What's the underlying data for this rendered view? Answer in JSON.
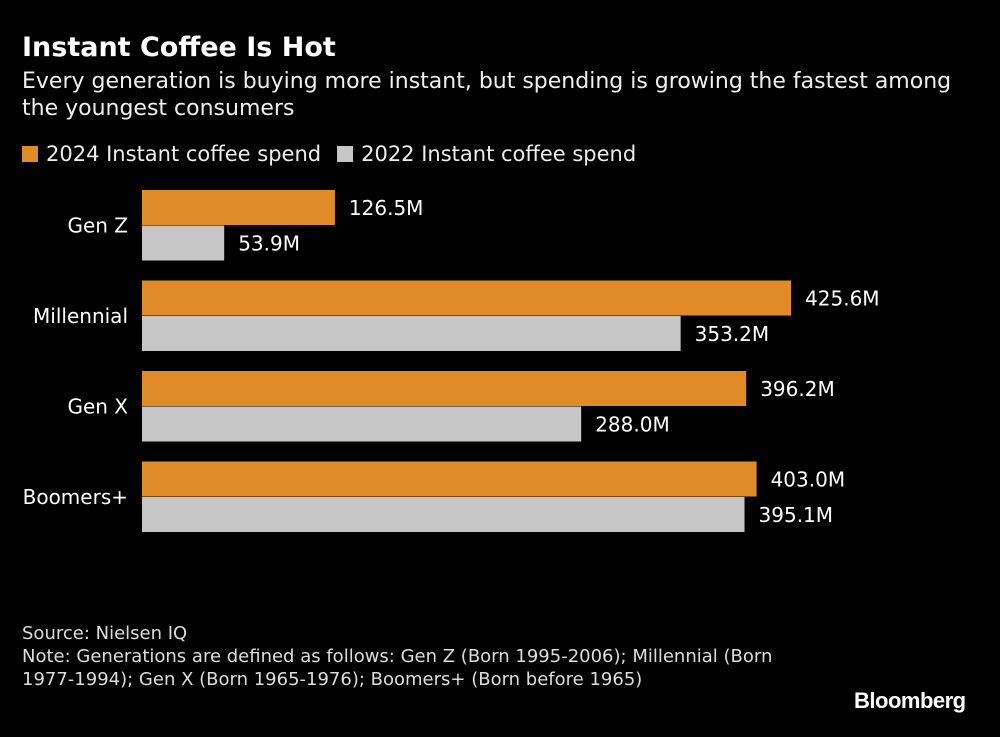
{
  "title": "Instant Coffee Is Hot",
  "subtitle": "Every generation is buying more instant, but spending is growing the fastest among the youngest consumers",
  "colors": {
    "s2024": "#e08b27",
    "s2022": "#c6c6c6"
  },
  "chart_data": {
    "type": "bar",
    "orientation": "horizontal",
    "categories": [
      "Gen Z",
      "Millennial",
      "Gen X",
      "Boomers+"
    ],
    "series": [
      {
        "name": "2024 Instant coffee spend",
        "values": [
          126.5,
          425.6,
          396.2,
          403.0
        ],
        "labels": [
          "126.5M",
          "425.6M",
          "396.2M",
          "403.0M"
        ]
      },
      {
        "name": "2022 Instant coffee spend",
        "values": [
          53.9,
          353.2,
          288.0,
          395.1
        ],
        "labels": [
          "53.9M",
          "353.2M",
          "288.0M",
          "395.1M"
        ]
      }
    ],
    "unit": "M",
    "xlim": [
      0,
      560
    ],
    "grid": false,
    "legend": "top-left"
  },
  "footer": {
    "source": "Source: Nielsen IQ",
    "note": "Note: Generations are defined as follows: Gen Z (Born 1995-2006); Millennial (Born 1977-1994); Gen X (Born 1965-1976); Boomers+ (Born before 1965)"
  },
  "brand": "Bloomberg"
}
